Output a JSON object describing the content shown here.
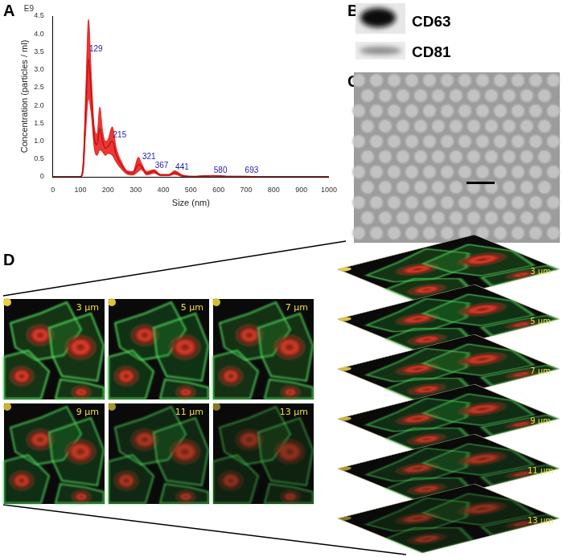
{
  "chart_data": {
    "type": "line",
    "x_label": "Size (nm)",
    "y_label": "Concentration (particles / ml)",
    "x": [
      0,
      50,
      100,
      110,
      120,
      129,
      140,
      150,
      160,
      170,
      180,
      190,
      200,
      215,
      230,
      250,
      270,
      290,
      310,
      320,
      340,
      367,
      390,
      420,
      441,
      470,
      520,
      580,
      630,
      693,
      750,
      850,
      1000
    ],
    "values": [
      0,
      0,
      0,
      0.3,
      2.0,
      3.3,
      2.2,
      1.1,
      0.9,
      1.35,
      1.0,
      0.8,
      0.85,
      1.0,
      0.6,
      0.3,
      0.12,
      0.1,
      0.35,
      0.3,
      0.1,
      0.15,
      0.05,
      0.05,
      0.12,
      0.03,
      0.01,
      0.03,
      0.01,
      0.01,
      0,
      0,
      0
    ],
    "errors": [
      0,
      0,
      0,
      0.15,
      0.6,
      1.1,
      0.5,
      0.3,
      0.3,
      0.6,
      0.3,
      0.2,
      0.2,
      0.4,
      0.2,
      0.1,
      0.05,
      0.05,
      0.2,
      0.1,
      0.05,
      0.05,
      0.02,
      0.02,
      0.05,
      0.02,
      0,
      0.01,
      0,
      0,
      0,
      0,
      0
    ],
    "color": "#000000",
    "xlim": [
      0,
      1000
    ],
    "xticks": [
      0,
      100,
      200,
      300,
      400,
      500,
      600,
      700,
      800,
      900,
      1000
    ],
    "ylim": [
      0,
      4.5
    ],
    "yticks": [
      0,
      0.5,
      {
        "value": 1,
        "label": "1.0"
      },
      1.5,
      {
        "value": 2,
        "label": "2.0"
      },
      2.5,
      {
        "value": 3,
        "label": "3.0"
      },
      3.5,
      {
        "value": 4,
        "label": "4.0"
      },
      4.5
    ],
    "grid": false,
    "annotations": [
      {
        "text": "E9"
      },
      {
        "text": "129",
        "x": 129,
        "y": 3.45
      },
      {
        "text": "215",
        "x": 215,
        "y": 1.05
      },
      {
        "text": "321",
        "x": 321,
        "y": 0.45
      },
      {
        "text": "367",
        "x": 367,
        "y": 0.2
      },
      {
        "text": "441",
        "x": 441,
        "y": 0.16
      },
      {
        "text": "580",
        "x": 580,
        "y": 0.06
      },
      {
        "text": "693",
        "x": 693,
        "y": 0.06
      }
    ]
  },
  "panel_labels": [
    "A",
    "B",
    "C",
    "D"
  ],
  "western_blot": {
    "bands": [
      "CD63",
      "CD81"
    ]
  },
  "z_stack": {
    "depths": [
      "3 μm",
      "5 μm",
      "7 μm",
      "9 μm",
      "11 μm",
      "13 μm"
    ]
  }
}
